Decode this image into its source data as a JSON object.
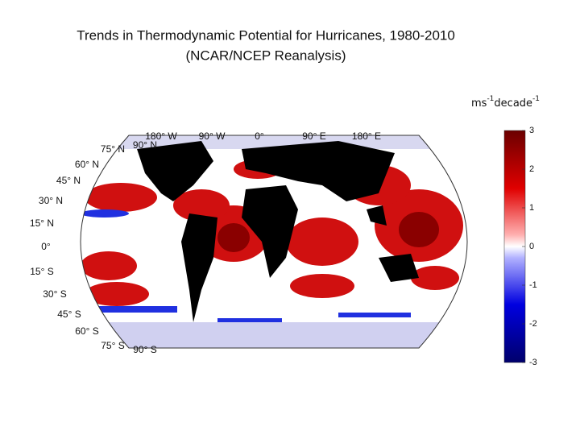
{
  "header": {
    "title": "Trends in Thermodynamic Potential for Hurricanes, 1980-2010",
    "subtitle": "(NCAR/NCEP Reanalysis)"
  },
  "colorbar": {
    "unit": {
      "base1": "ms",
      "exp1": "-1",
      "base2": "decade",
      "exp2": "-1"
    },
    "min": -3,
    "max": 3,
    "ticks": [
      3,
      2,
      1,
      0,
      -1,
      -2,
      -3
    ]
  },
  "map": {
    "longitude_labels": [
      "180° W",
      "90° W",
      "0°",
      "90° E",
      "180° E"
    ],
    "latitude_labels": [
      "90° N",
      "75° N",
      "60° N",
      "45° N",
      "30° N",
      "15° N",
      "0°",
      "15° S",
      "30° S",
      "45° S",
      "60° S",
      "75° S",
      "90° S"
    ]
  }
}
